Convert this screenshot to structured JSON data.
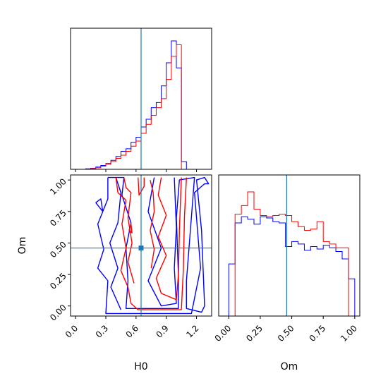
{
  "colors": {
    "series_1": "#0000ff",
    "series_2": "#ff0000",
    "truth": "#1f77b4",
    "axes": "#000000"
  },
  "chart_data": [
    {
      "type": "histogram",
      "panel": "H0 marginal",
      "xlim": [
        -0.05,
        1.35
      ],
      "x_ticks": [
        0.0,
        0.3,
        0.6,
        0.9,
        1.2
      ],
      "x_ticks_labeled": false,
      "y_ticks_labeled": false,
      "truth_x": 0.65,
      "bin_edges": [
        0.0,
        0.05,
        0.1,
        0.15,
        0.2,
        0.25,
        0.3,
        0.35,
        0.4,
        0.45,
        0.5,
        0.55,
        0.6,
        0.65,
        0.7,
        0.75,
        0.8,
        0.85,
        0.9,
        0.95,
        1.0,
        1.05,
        1.1
      ],
      "series": [
        {
          "color": "blue",
          "values": [
            0,
            0,
            0.004,
            0.008,
            0.018,
            0.03,
            0.045,
            0.07,
            0.1,
            0.14,
            0.16,
            0.21,
            0.25,
            0.33,
            0.39,
            0.48,
            0.52,
            0.65,
            0.83,
            1.0,
            0.79,
            0.06
          ]
        },
        {
          "color": "red",
          "values": [
            0,
            0,
            0.002,
            0.006,
            0.012,
            0.025,
            0.04,
            0.06,
            0.085,
            0.11,
            0.14,
            0.18,
            0.22,
            0.28,
            0.35,
            0.42,
            0.48,
            0.55,
            0.7,
            0.88,
            0.97,
            0.0
          ]
        }
      ]
    },
    {
      "type": "contour",
      "panel": "Om vs H0",
      "xlabel": "H0",
      "ylabel": "Om",
      "xlim": [
        -0.05,
        1.35
      ],
      "ylim": [
        -0.08,
        1.04
      ],
      "x_ticks": [
        "0.0",
        "0.3",
        "0.6",
        "0.9",
        "1.2"
      ],
      "y_ticks": [
        "0.00",
        "0.25",
        "0.50",
        "0.75",
        "1.00"
      ],
      "truth": {
        "x": 0.65,
        "y": 0.46
      },
      "series": [
        {
          "color": "blue",
          "contours": [
            [
              [
                0.32,
                1.02
              ],
              [
                0.48,
                1.02
              ],
              [
                0.46,
                0.88
              ],
              [
                0.55,
                0.66
              ],
              [
                0.5,
                0.46
              ],
              [
                0.52,
                0.2
              ],
              [
                0.5,
                -0.02
              ],
              [
                1.02,
                -0.02
              ],
              [
                1.02,
                0.25
              ],
              [
                1.0,
                0.7
              ],
              [
                1.03,
                1.0
              ],
              [
                1.18,
                1.02
              ],
              [
                1.1,
                0.2
              ],
              [
                1.1,
                -0.02
              ],
              [
                1.25,
                -0.05
              ],
              [
                1.28,
                0.0
              ],
              [
                1.25,
                0.6
              ],
              [
                1.2,
                1.0
              ],
              [
                1.28,
                1.02
              ],
              [
                1.32,
                0.97
              ],
              [
                1.28,
                0.97
              ],
              [
                1.18,
                0.9
              ],
              [
                1.24,
                0.3
              ],
              [
                1.15,
                -0.06
              ],
              [
                0.3,
                -0.06
              ],
              [
                0.32,
                0.2
              ],
              [
                0.22,
                0.3
              ],
              [
                0.28,
                0.45
              ],
              [
                0.22,
                0.65
              ],
              [
                0.32,
                0.85
              ],
              [
                0.32,
                1.02
              ]
            ],
            [
              [
                0.45,
                -0.03
              ],
              [
                0.35,
                0.15
              ],
              [
                0.42,
                0.3
              ],
              [
                0.34,
                0.5
              ],
              [
                0.42,
                0.66
              ],
              [
                0.45,
                0.9
              ],
              [
                0.4,
                1.02
              ]
            ],
            [
              [
                0.78,
                1.02
              ],
              [
                0.72,
                0.75
              ],
              [
                0.85,
                0.46
              ],
              [
                0.72,
                0.2
              ],
              [
                0.85,
                0.0
              ],
              [
                1.0,
                0.02
              ],
              [
                0.98,
                0.3
              ],
              [
                1.0,
                0.62
              ],
              [
                0.98,
                1.02
              ]
            ],
            [
              [
                0.2,
                0.82
              ],
              [
                0.27,
                0.75
              ],
              [
                0.25,
                0.85
              ],
              [
                0.2,
                0.82
              ]
            ]
          ]
        },
        {
          "color": "red",
          "contours": [
            [
              [
                0.4,
                1.02
              ],
              [
                0.42,
                0.9
              ],
              [
                0.5,
                0.84
              ],
              [
                0.46,
                0.65
              ],
              [
                0.5,
                0.46
              ],
              [
                0.45,
                0.28
              ],
              [
                0.52,
                0.15
              ],
              [
                0.55,
                0.02
              ],
              [
                0.62,
                -0.03
              ],
              [
                1.05,
                -0.03
              ],
              [
                1.07,
                0.3
              ],
              [
                1.08,
                0.7
              ],
              [
                1.1,
                1.02
              ]
            ],
            [
              [
                0.48,
                1.02
              ],
              [
                0.5,
                0.94
              ],
              [
                0.55,
                0.9
              ],
              [
                0.52,
                0.7
              ],
              [
                0.56,
                0.5
              ],
              [
                0.52,
                0.35
              ],
              [
                0.58,
                0.18
              ]
            ],
            [
              [
                0.85,
                1.02
              ],
              [
                0.82,
                0.88
              ],
              [
                0.9,
                0.72
              ],
              [
                0.82,
                0.55
              ],
              [
                0.9,
                0.4
              ],
              [
                0.8,
                0.22
              ],
              [
                0.85,
                0.1
              ],
              [
                1.0,
                0.05
              ],
              [
                1.02,
                0.25
              ],
              [
                1.03,
                0.6
              ],
              [
                1.05,
                1.02
              ]
            ],
            [
              [
                0.62,
                1.02
              ],
              [
                0.63,
                0.88
              ],
              [
                0.68,
                0.95
              ],
              [
                0.68,
                1.02
              ]
            ],
            [
              [
                0.74,
                1.0
              ],
              [
                0.77,
                0.9
              ],
              [
                0.78,
                0.75
              ],
              [
                0.74,
                0.6
              ],
              [
                0.78,
                0.45
              ],
              [
                0.75,
                0.3
              ]
            ],
            [
              [
                0.53,
                0.6
              ],
              [
                0.56,
                0.58
              ],
              [
                0.55,
                0.65
              ],
              [
                0.53,
                0.6
              ]
            ]
          ]
        }
      ]
    },
    {
      "type": "histogram",
      "panel": "Om marginal",
      "xlabel": "Om",
      "xlim": [
        -0.08,
        1.04
      ],
      "x_ticks": [
        "0.00",
        "0.25",
        "0.50",
        "0.75",
        "1.00"
      ],
      "y_ticks_labeled": false,
      "truth_x": 0.46,
      "bin_edges": [
        -0.02,
        0.0,
        0.05,
        0.1,
        0.15,
        0.2,
        0.25,
        0.3,
        0.35,
        0.4,
        0.45,
        0.5,
        0.55,
        0.6,
        0.65,
        0.7,
        0.75,
        0.8,
        0.85,
        0.9,
        0.95,
        1.0
      ],
      "series": [
        {
          "color": "blue",
          "values": [
            0.0,
            0.42,
            0.75,
            0.8,
            0.78,
            0.74,
            0.8,
            0.79,
            0.76,
            0.75,
            0.56,
            0.6,
            0.58,
            0.53,
            0.56,
            0.54,
            0.57,
            0.55,
            0.52,
            0.46,
            0.3
          ]
        },
        {
          "color": "red",
          "values": [
            0.0,
            0.0,
            0.82,
            0.89,
            1.0,
            0.86,
            0.81,
            0.8,
            0.81,
            0.82,
            0.81,
            0.76,
            0.72,
            0.69,
            0.7,
            0.76,
            0.6,
            0.58,
            0.55,
            0.55,
            0.0
          ]
        }
      ]
    }
  ]
}
